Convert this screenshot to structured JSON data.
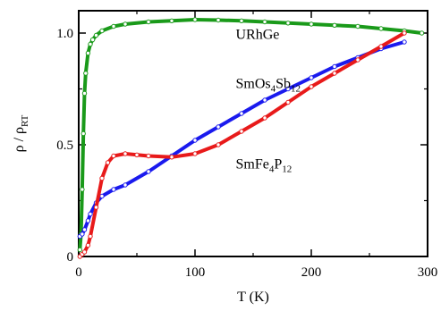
{
  "chart_data": {
    "type": "line",
    "xlabel": "T (K)",
    "ylabel": "ρ / ρRT",
    "ylabel_parts": {
      "main": "ρ / ρ",
      "sub": "RT"
    },
    "xlim": [
      0,
      300
    ],
    "ylim": [
      0,
      1.1
    ],
    "xticks": [
      0,
      100,
      200,
      300
    ],
    "xtick_labels": [
      "0",
      "100",
      "200",
      "300"
    ],
    "yticks": [
      0,
      0.5,
      1.0
    ],
    "ytick_labels": [
      "0",
      "0.5",
      "1.0"
    ],
    "grid": false,
    "legend": "none (series labelled directly on plot)",
    "series": [
      {
        "name": "URhGe",
        "label_parts": [
          {
            "t": "URhGe"
          }
        ],
        "color": "#1a9a1a",
        "x": [
          1,
          2,
          3,
          4,
          5,
          6,
          8,
          10,
          12,
          15,
          20,
          30,
          40,
          60,
          80,
          100,
          120,
          140,
          160,
          180,
          200,
          220,
          240,
          260,
          280,
          295
        ],
        "y": [
          0.03,
          0.1,
          0.3,
          0.55,
          0.73,
          0.82,
          0.91,
          0.95,
          0.97,
          0.99,
          1.01,
          1.03,
          1.04,
          1.05,
          1.055,
          1.06,
          1.058,
          1.055,
          1.05,
          1.045,
          1.04,
          1.035,
          1.03,
          1.02,
          1.01,
          1.0
        ]
      },
      {
        "name": "SmOs4Sb12",
        "label_parts": [
          {
            "t": "SmOs"
          },
          {
            "t": "4",
            "sub": true
          },
          {
            "t": "Sb"
          },
          {
            "t": "12",
            "sub": true
          }
        ],
        "color": "#1a1aee",
        "x": [
          1,
          3,
          5,
          8,
          10,
          15,
          20,
          30,
          40,
          60,
          80,
          100,
          120,
          140,
          160,
          180,
          200,
          220,
          240,
          260,
          280
        ],
        "y": [
          0.09,
          0.1,
          0.12,
          0.16,
          0.19,
          0.24,
          0.27,
          0.3,
          0.32,
          0.38,
          0.45,
          0.52,
          0.58,
          0.64,
          0.7,
          0.75,
          0.8,
          0.85,
          0.89,
          0.93,
          0.96
        ]
      },
      {
        "name": "SmFe4P12",
        "label_parts": [
          {
            "t": "SmFe"
          },
          {
            "t": "4",
            "sub": true
          },
          {
            "t": "P"
          },
          {
            "t": "12",
            "sub": true
          }
        ],
        "color": "#e81a1a",
        "x": [
          1,
          3,
          5,
          8,
          10,
          15,
          20,
          25,
          30,
          40,
          50,
          60,
          80,
          100,
          120,
          140,
          160,
          180,
          200,
          220,
          240,
          260,
          280
        ],
        "y": [
          0.0,
          0.01,
          0.02,
          0.05,
          0.09,
          0.22,
          0.35,
          0.42,
          0.45,
          0.46,
          0.455,
          0.45,
          0.445,
          0.46,
          0.5,
          0.56,
          0.62,
          0.69,
          0.76,
          0.82,
          0.88,
          0.94,
          1.0
        ]
      }
    ],
    "annotations": [
      {
        "series": "URhGe",
        "at_x": 135,
        "at_y": 0.975
      },
      {
        "series": "SmOs4Sb12",
        "at_x": 135,
        "at_y": 0.755
      },
      {
        "series": "SmFe4P12",
        "at_x": 135,
        "at_y": 0.395
      }
    ]
  }
}
